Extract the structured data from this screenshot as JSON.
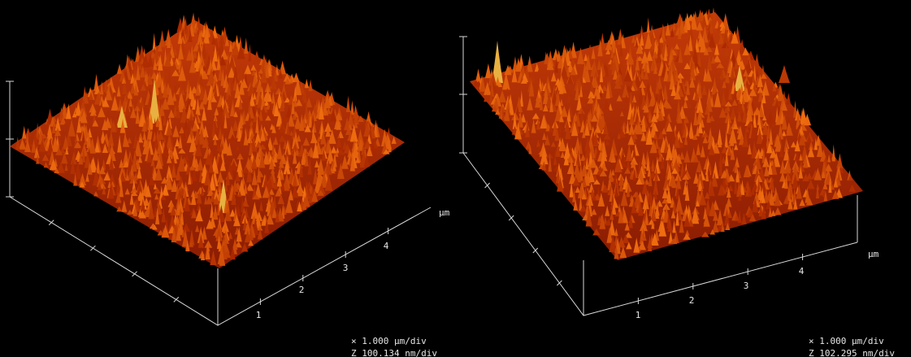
{
  "panels": [
    {
      "ticks": [
        "1",
        "2",
        "3",
        "4"
      ],
      "unit": "µm",
      "scale": [
        "× 1.000 µm/div",
        "Z 100.134 nm/div"
      ]
    },
    {
      "ticks": [
        "1",
        "2",
        "3",
        "4"
      ],
      "unit": "µm",
      "scale": [
        "× 1.000 µm/div",
        "Z 102.295 nm/div"
      ]
    }
  ]
}
